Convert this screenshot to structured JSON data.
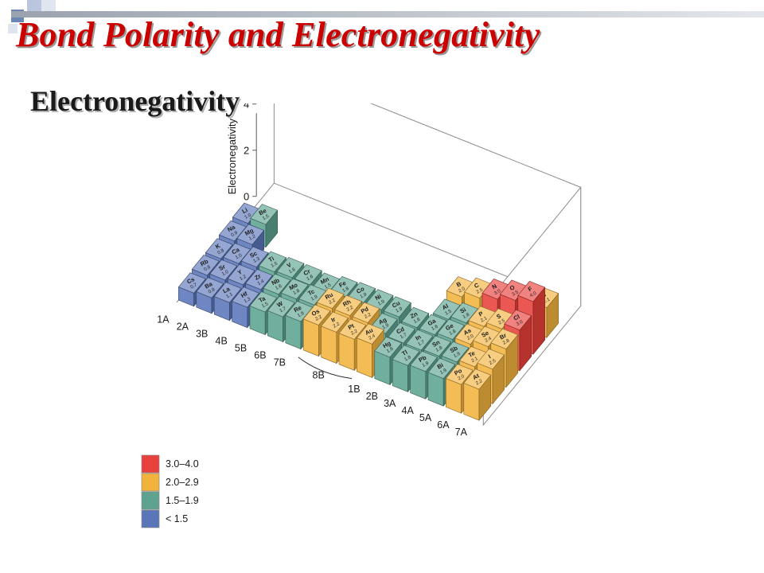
{
  "title": "Bond Polarity and Electronegativity",
  "subtitle": "Electronegativity",
  "colors": {
    "title": "#cc0000",
    "accent_squares": [
      "#6b85b5",
      "#b9c6dd",
      "#e0e6f0"
    ],
    "accent_bar": "#c6cbd4"
  },
  "chart_data": {
    "type": "bar3d",
    "title": "",
    "ylabel": "Electronegativity",
    "yticks": [
      0,
      2,
      4
    ],
    "ylim": [
      0,
      4
    ],
    "group_labels": [
      "1A",
      "2A",
      "3B",
      "4B",
      "5B",
      "6B",
      "7B",
      "8B",
      "1B",
      "2B",
      "3A",
      "4A",
      "5A",
      "6A",
      "7A"
    ],
    "legend": [
      {
        "label": "3.0–4.0",
        "color": "#e8403a"
      },
      {
        "label": "2.0–2.9",
        "color": "#f2b33d"
      },
      {
        "label": "1.5–1.9",
        "color": "#5da390"
      },
      {
        "label": "< 1.5",
        "color": "#5a76b8"
      }
    ],
    "elements": [
      {
        "symbol": "H",
        "value": 2.1,
        "col": 16,
        "row": 0
      },
      {
        "symbol": "Li",
        "value": 1.0,
        "col": 0,
        "row": 1
      },
      {
        "symbol": "Be",
        "value": 1.5,
        "col": 1,
        "row": 1
      },
      {
        "symbol": "B",
        "value": 2.0,
        "col": 12,
        "row": 1
      },
      {
        "symbol": "C",
        "value": 2.5,
        "col": 13,
        "row": 1
      },
      {
        "symbol": "N",
        "value": 3.0,
        "col": 14,
        "row": 1
      },
      {
        "symbol": "O",
        "value": 3.5,
        "col": 15,
        "row": 1
      },
      {
        "symbol": "F",
        "value": 4.0,
        "col": 16,
        "row": 1
      },
      {
        "symbol": "Na",
        "value": 0.9,
        "col": 0,
        "row": 2
      },
      {
        "symbol": "Mg",
        "value": 1.2,
        "col": 1,
        "row": 2
      },
      {
        "symbol": "Al",
        "value": 1.5,
        "col": 12,
        "row": 2
      },
      {
        "symbol": "Si",
        "value": 1.8,
        "col": 13,
        "row": 2
      },
      {
        "symbol": "P",
        "value": 2.1,
        "col": 14,
        "row": 2
      },
      {
        "symbol": "S",
        "value": 2.5,
        "col": 15,
        "row": 2
      },
      {
        "symbol": "Cl",
        "value": 3.0,
        "col": 16,
        "row": 2
      },
      {
        "symbol": "K",
        "value": 0.8,
        "col": 0,
        "row": 3
      },
      {
        "symbol": "Ca",
        "value": 1.0,
        "col": 1,
        "row": 3
      },
      {
        "symbol": "Sc",
        "value": 1.3,
        "col": 2,
        "row": 3
      },
      {
        "symbol": "Ti",
        "value": 1.5,
        "col": 3,
        "row": 3
      },
      {
        "symbol": "V",
        "value": 1.6,
        "col": 4,
        "row": 3
      },
      {
        "symbol": "Cr",
        "value": 1.6,
        "col": 5,
        "row": 3
      },
      {
        "symbol": "Mn",
        "value": 1.5,
        "col": 6,
        "row": 3
      },
      {
        "symbol": "Fe",
        "value": 1.8,
        "col": 7,
        "row": 3
      },
      {
        "symbol": "Co",
        "value": 1.9,
        "col": 8,
        "row": 3
      },
      {
        "symbol": "Ni",
        "value": 1.9,
        "col": 9,
        "row": 3
      },
      {
        "symbol": "Cu",
        "value": 1.9,
        "col": 10,
        "row": 3
      },
      {
        "symbol": "Zn",
        "value": 1.6,
        "col": 11,
        "row": 3
      },
      {
        "symbol": "Ga",
        "value": 1.6,
        "col": 12,
        "row": 3
      },
      {
        "symbol": "Ge",
        "value": 1.8,
        "col": 13,
        "row": 3
      },
      {
        "symbol": "As",
        "value": 2.0,
        "col": 14,
        "row": 3
      },
      {
        "symbol": "Se",
        "value": 2.4,
        "col": 15,
        "row": 3
      },
      {
        "symbol": "Br",
        "value": 2.8,
        "col": 16,
        "row": 3
      },
      {
        "symbol": "Rb",
        "value": 0.8,
        "col": 0,
        "row": 4
      },
      {
        "symbol": "Sr",
        "value": 1.0,
        "col": 1,
        "row": 4
      },
      {
        "symbol": "Y",
        "value": 1.2,
        "col": 2,
        "row": 4
      },
      {
        "symbol": "Zr",
        "value": 1.4,
        "col": 3,
        "row": 4
      },
      {
        "symbol": "Nb",
        "value": 1.6,
        "col": 4,
        "row": 4
      },
      {
        "symbol": "Mo",
        "value": 1.8,
        "col": 5,
        "row": 4
      },
      {
        "symbol": "Tc",
        "value": 1.9,
        "col": 6,
        "row": 4
      },
      {
        "symbol": "Ru",
        "value": 2.2,
        "col": 7,
        "row": 4
      },
      {
        "symbol": "Rh",
        "value": 2.2,
        "col": 8,
        "row": 4
      },
      {
        "symbol": "Pd",
        "value": 2.2,
        "col": 9,
        "row": 4
      },
      {
        "symbol": "Ag",
        "value": 1.9,
        "col": 10,
        "row": 4
      },
      {
        "symbol": "Cd",
        "value": 1.7,
        "col": 11,
        "row": 4
      },
      {
        "symbol": "In",
        "value": 1.7,
        "col": 12,
        "row": 4
      },
      {
        "symbol": "Sn",
        "value": 1.8,
        "col": 13,
        "row": 4
      },
      {
        "symbol": "Sb",
        "value": 1.9,
        "col": 14,
        "row": 4
      },
      {
        "symbol": "Te",
        "value": 2.1,
        "col": 15,
        "row": 4
      },
      {
        "symbol": "I",
        "value": 2.5,
        "col": 16,
        "row": 4
      },
      {
        "symbol": "Cs",
        "value": 0.7,
        "col": 0,
        "row": 5
      },
      {
        "symbol": "Ba",
        "value": 0.9,
        "col": 1,
        "row": 5
      },
      {
        "symbol": "La",
        "value": 1.1,
        "col": 2,
        "row": 5
      },
      {
        "symbol": "Hf",
        "value": 1.3,
        "col": 3,
        "row": 5
      },
      {
        "symbol": "Ta",
        "value": 1.5,
        "col": 4,
        "row": 5
      },
      {
        "symbol": "W",
        "value": 1.7,
        "col": 5,
        "row": 5
      },
      {
        "symbol": "Re",
        "value": 1.9,
        "col": 6,
        "row": 5
      },
      {
        "symbol": "Os",
        "value": 2.2,
        "col": 7,
        "row": 5
      },
      {
        "symbol": "Ir",
        "value": 2.2,
        "col": 8,
        "row": 5
      },
      {
        "symbol": "Pt",
        "value": 2.2,
        "col": 9,
        "row": 5
      },
      {
        "symbol": "Au",
        "value": 2.4,
        "col": 10,
        "row": 5
      },
      {
        "symbol": "Hg",
        "value": 1.9,
        "col": 11,
        "row": 5
      },
      {
        "symbol": "Tl",
        "value": 1.8,
        "col": 12,
        "row": 5
      },
      {
        "symbol": "Pb",
        "value": 1.9,
        "col": 13,
        "row": 5
      },
      {
        "symbol": "Bi",
        "value": 1.9,
        "col": 14,
        "row": 5
      },
      {
        "symbol": "Po",
        "value": 2.0,
        "col": 15,
        "row": 5
      },
      {
        "symbol": "At",
        "value": 2.2,
        "col": 16,
        "row": 5
      }
    ]
  }
}
